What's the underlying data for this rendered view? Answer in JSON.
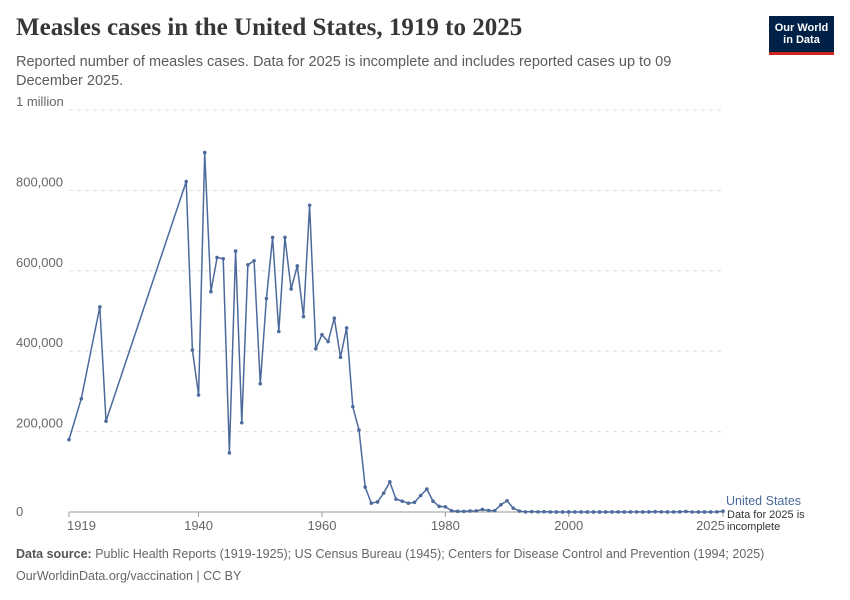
{
  "header": {
    "title": "Measles cases in the United States, 1919 to 2025",
    "subtitle": "Reported number of measles cases. Data for 2025 is incomplete and includes reported cases up to 09 December 2025.",
    "logo_line1": "Our World",
    "logo_line2": "in Data"
  },
  "footer": {
    "source_label": "Data source:",
    "source_text": "Public Health Reports (1919-1925); US Census Bureau (1945); Centers for Disease Control and Prevention (1994; 2025)",
    "url": "OurWorldinData.org/vaccination | CC BY"
  },
  "colors": {
    "series": "#4c6a9c",
    "grid": "#dddddd"
  },
  "chart_data": {
    "type": "line",
    "title": "Measles cases in the United States, 1919 to 2025",
    "xlabel": "",
    "ylabel": "",
    "xlim": [
      1919,
      2025
    ],
    "ylim": [
      0,
      1000000
    ],
    "x_ticks": [
      1919,
      1940,
      1960,
      1980,
      2000,
      2025
    ],
    "y_ticks": [
      0,
      200000,
      400000,
      600000,
      800000,
      1000000
    ],
    "y_tick_labels": [
      "0",
      "200,000",
      "400,000",
      "600,000",
      "800,000",
      "1 million"
    ],
    "grid": "horizontal",
    "series": [
      {
        "name": "United States",
        "annotation": [
          "Data for 2025 is",
          "incomplete"
        ],
        "x": [
          1919,
          1921,
          1924,
          1925,
          1938,
          1939,
          1940,
          1941,
          1942,
          1943,
          1944,
          1945,
          1946,
          1947,
          1948,
          1949,
          1950,
          1951,
          1952,
          1953,
          1954,
          1955,
          1956,
          1957,
          1958,
          1959,
          1960,
          1961,
          1962,
          1963,
          1964,
          1965,
          1966,
          1967,
          1968,
          1969,
          1970,
          1971,
          1972,
          1973,
          1974,
          1975,
          1976,
          1977,
          1978,
          1979,
          1980,
          1981,
          1982,
          1983,
          1984,
          1985,
          1986,
          1987,
          1988,
          1989,
          1990,
          1991,
          1992,
          1993,
          1994,
          1995,
          1996,
          1997,
          1998,
          1999,
          2000,
          2001,
          2002,
          2003,
          2004,
          2005,
          2006,
          2007,
          2008,
          2009,
          2010,
          2011,
          2012,
          2013,
          2014,
          2015,
          2016,
          2017,
          2018,
          2019,
          2020,
          2021,
          2022,
          2023,
          2024,
          2025
        ],
        "values": [
          180000,
          282000,
          510000,
          226000,
          822000,
          403000,
          291000,
          894000,
          548000,
          633000,
          630000,
          147000,
          649000,
          222000,
          615000,
          625000,
          319000,
          531000,
          683000,
          449000,
          683000,
          555000,
          612000,
          486000,
          763000,
          406000,
          441000,
          424000,
          482000,
          385000,
          458000,
          262000,
          204000,
          62000,
          22000,
          25000,
          47000,
          75000,
          32000,
          27000,
          22000,
          24000,
          41000,
          57000,
          27000,
          14000,
          13000,
          3000,
          1700,
          1500,
          2600,
          2800,
          6300,
          3700,
          3400,
          18000,
          28000,
          9600,
          2200,
          300,
          960,
          300,
          500,
          140,
          100,
          100,
          86,
          116,
          44,
          56,
          37,
          66,
          55,
          43,
          140,
          71,
          63,
          220,
          55,
          187,
          667,
          188,
          86,
          120,
          375,
          1274,
          13,
          49,
          121,
          59,
          285,
          2000
        ]
      }
    ]
  }
}
